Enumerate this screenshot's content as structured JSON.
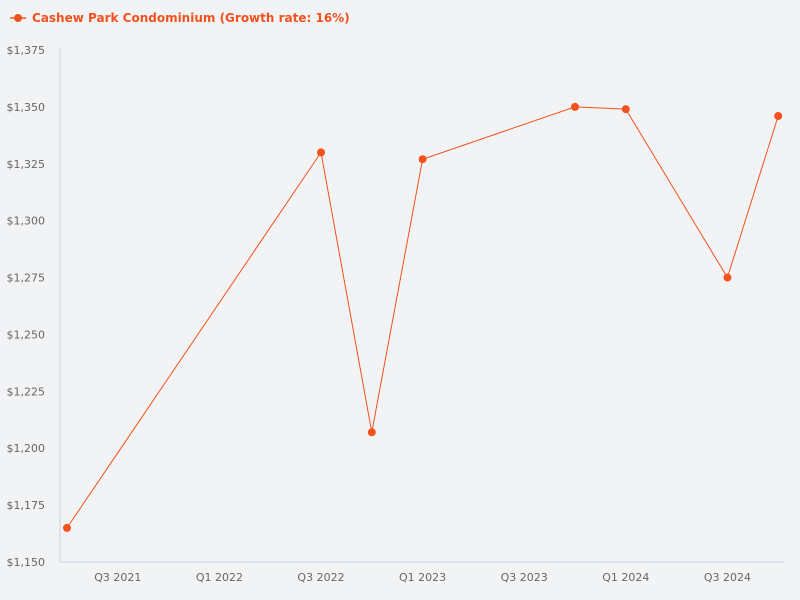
{
  "legend": {
    "label": "Cashew Park Condominium (Growth rate: 16%)",
    "color": "#f4511e"
  },
  "colors": {
    "background": "#f2f3f5",
    "axis": "#c8d3e6",
    "series": "#f4511e",
    "tick_text": "#666666"
  },
  "chart_data": {
    "type": "line",
    "title": "",
    "xlabel": "",
    "ylabel": "",
    "legend_position": "top-left",
    "grid": false,
    "ylim": [
      1150,
      1375
    ],
    "y_ticks": [
      "$1,150",
      "$1,175",
      "$1,200",
      "$1,225",
      "$1,250",
      "$1,275",
      "$1,300",
      "$1,325",
      "$1,350",
      "$1,375"
    ],
    "y_tick_values": [
      1150,
      1175,
      1200,
      1225,
      1250,
      1275,
      1300,
      1325,
      1350,
      1375
    ],
    "x_ticks": [
      "Q3 2021",
      "Q1 2022",
      "Q3 2022",
      "Q1 2023",
      "Q3 2023",
      "Q1 2024",
      "Q3 2024"
    ],
    "x_tick_quarter_index": [
      1,
      3,
      5,
      7,
      9,
      11,
      13
    ],
    "x_quarter_range": [
      0,
      14.3
    ],
    "series": [
      {
        "name": "Cashew Park Condominium (Growth rate: 16%)",
        "color": "#f4511e",
        "x": [
          "Q2 2021",
          "Q3 2022",
          "Q4 2022",
          "Q1 2023",
          "Q4 2023",
          "Q1 2024",
          "Q3 2024",
          "Q4 2024"
        ],
        "x_quarter_index": [
          0,
          5,
          6,
          7,
          10,
          11,
          13,
          14
        ],
        "values": [
          1165,
          1330,
          1207,
          1327,
          1350,
          1349,
          1275,
          1346
        ]
      }
    ]
  }
}
